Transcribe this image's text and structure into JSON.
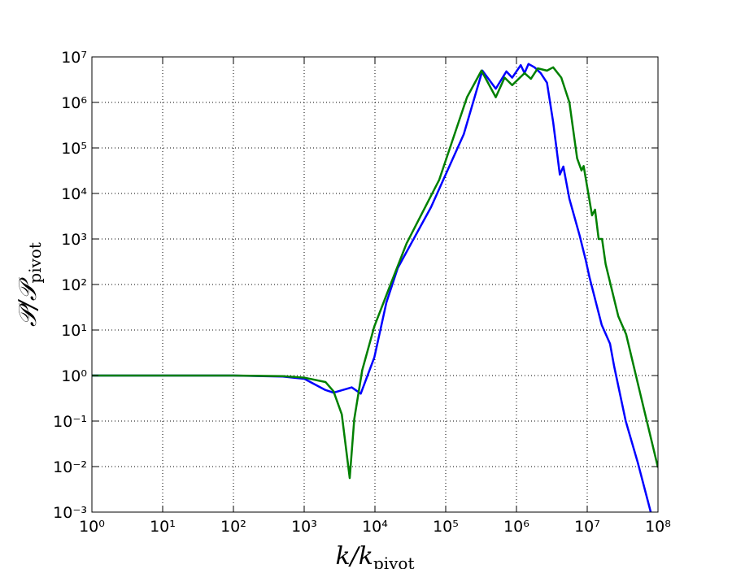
{
  "chart_data": {
    "type": "line",
    "xlog": true,
    "ylog": true,
    "grid": true,
    "xlabel": {
      "main": "k/k",
      "sub": "pivot"
    },
    "ylabel": {
      "main": "𝒫/𝒫",
      "sub": "pivot"
    },
    "xlim": [
      1,
      100000000
    ],
    "ylim": [
      0.001,
      10000000
    ],
    "xticks": [
      {
        "value": 1,
        "label": "10⁰"
      },
      {
        "value": 10,
        "label": "10¹"
      },
      {
        "value": 100,
        "label": "10²"
      },
      {
        "value": 1000,
        "label": "10³"
      },
      {
        "value": 10000,
        "label": "10⁴"
      },
      {
        "value": 100000,
        "label": "10⁵"
      },
      {
        "value": 1000000,
        "label": "10⁶"
      },
      {
        "value": 10000000,
        "label": "10⁷"
      },
      {
        "value": 100000000,
        "label": "10⁸"
      }
    ],
    "yticks": [
      {
        "value": 0.001,
        "label": "10⁻³"
      },
      {
        "value": 0.01,
        "label": "10⁻²"
      },
      {
        "value": 0.1,
        "label": "10⁻¹"
      },
      {
        "value": 1,
        "label": "10⁰"
      },
      {
        "value": 10,
        "label": "10¹"
      },
      {
        "value": 100,
        "label": "10²"
      },
      {
        "value": 1000,
        "label": "10³"
      },
      {
        "value": 10000,
        "label": "10⁴"
      },
      {
        "value": 100000,
        "label": "10⁵"
      },
      {
        "value": 1000000,
        "label": "10⁶"
      },
      {
        "value": 10000000,
        "label": "10⁷"
      }
    ],
    "series": [
      {
        "color": "#0000ff",
        "x": [
          1,
          100,
          500,
          1000,
          2000,
          2600,
          4700,
          6300,
          9800,
          14500,
          21000,
          62000,
          180000,
          330000,
          510000,
          720000,
          870000,
          1150000,
          1300000,
          1480000,
          1800000,
          2200000,
          2700000,
          3300000,
          4100000,
          4600000,
          5600000,
          7800000,
          9500000,
          10700000,
          16000000,
          21000000,
          24000000,
          35000000,
          52000000,
          79000000
        ],
        "values": [
          1,
          1,
          0.95,
          0.85,
          0.48,
          0.42,
          0.55,
          0.4,
          2.5,
          40,
          230,
          5000,
          200000,
          5000000,
          2000000,
          4800000,
          3500000,
          6600000,
          4400000,
          7000000,
          5900000,
          4400000,
          2700000,
          370000,
          26000,
          39000,
          7600,
          1200,
          350,
          150,
          13,
          5,
          1.6,
          0.1,
          0.012,
          0.001
        ]
      },
      {
        "color": "#008000",
        "x": [
          1,
          100,
          500,
          1000,
          2000,
          2600,
          3400,
          4400,
          5100,
          6600,
          9800,
          16600,
          28000,
          81000,
          200000,
          320000,
          510000,
          680000,
          870000,
          1300000,
          1600000,
          2000000,
          2700000,
          3300000,
          4300000,
          5600000,
          7200000,
          8300000,
          8900000,
          11700000,
          12900000,
          14500000,
          16200000,
          18200000,
          27500000,
          35500000,
          60000000,
          100000000
        ],
        "values": [
          1,
          1,
          0.97,
          0.9,
          0.72,
          0.45,
          0.14,
          0.0056,
          0.11,
          1.3,
          12,
          100,
          800,
          20000,
          1300000,
          5000000,
          1300000,
          3500000,
          2400000,
          4400000,
          3300000,
          5600000,
          5000000,
          5900000,
          3500000,
          1000000,
          59000,
          32000,
          40000,
          3300,
          4400,
          1000,
          1000,
          280,
          20,
          8,
          0.26,
          0.0095
        ]
      }
    ]
  }
}
